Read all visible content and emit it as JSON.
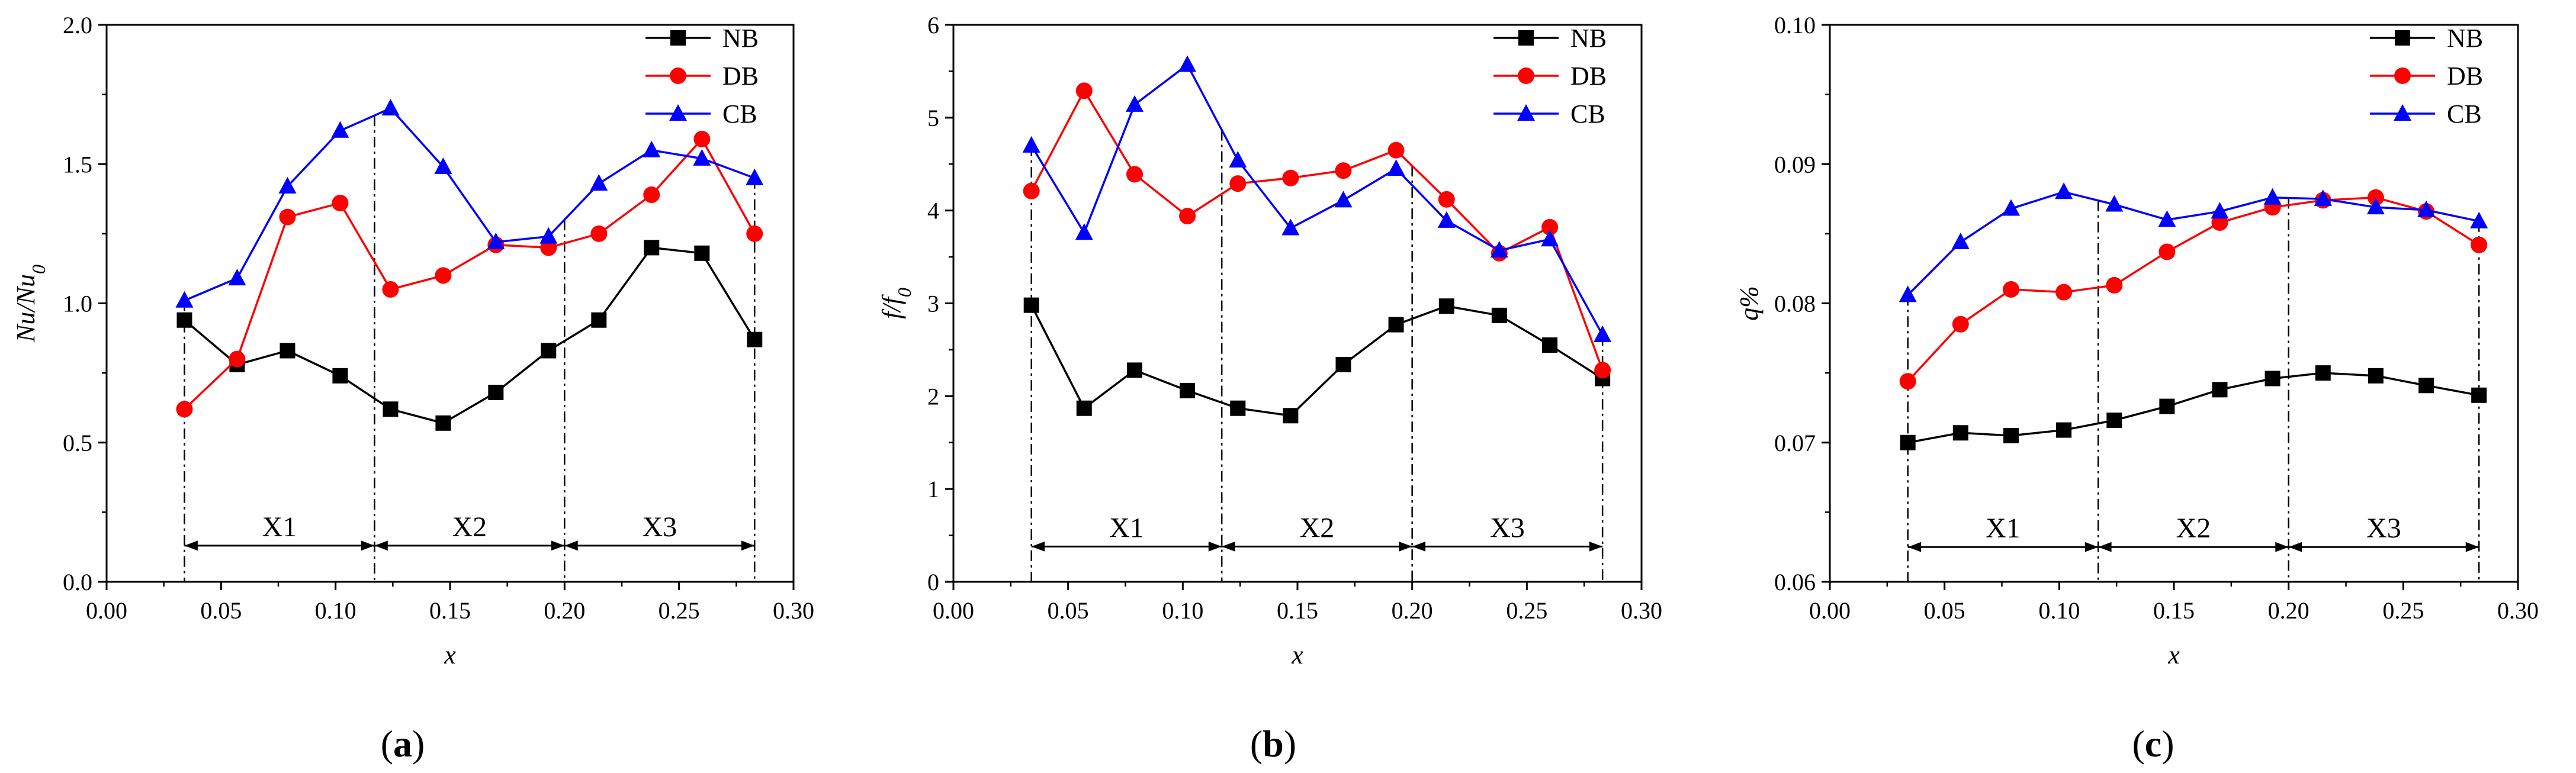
{
  "figure": {
    "colors": {
      "NB": "#000000",
      "DB": "#ff0000",
      "CB": "#0000ff",
      "axis": "#000000"
    },
    "marker_names": {
      "NB": "square-marker",
      "DB": "circle-marker",
      "CB": "triangle-marker"
    },
    "zone_boundaries": [
      0.034,
      0.117,
      0.2,
      0.283
    ]
  },
  "chart_data": [
    {
      "type": "line",
      "panel_label": "(a)",
      "panel_letter": "a",
      "title": "",
      "xlabel": "x",
      "ylabel": "Nu/Nu",
      "ylabel_sub": "0",
      "xlim": [
        0,
        0.3
      ],
      "ylim": [
        0,
        2.0
      ],
      "xticks": [
        0,
        0.05,
        0.1,
        0.15,
        0.2,
        0.25,
        0.3
      ],
      "xtick_labels": [
        "0.00",
        "0.05",
        "0.10",
        "0.15",
        "0.20",
        "0.25",
        "0.30"
      ],
      "yticks": [
        0,
        0.5,
        1.0,
        1.5,
        2.0
      ],
      "ytick_labels": [
        "0.0",
        "0.5",
        "1.0",
        "1.5",
        "2.0"
      ],
      "x": [
        0.034,
        0.057,
        0.079,
        0.102,
        0.124,
        0.147,
        0.17,
        0.193,
        0.215,
        0.238,
        0.26,
        0.283
      ],
      "series": [
        {
          "name": "NB",
          "values": [
            0.94,
            0.78,
            0.83,
            0.74,
            0.62,
            0.57,
            0.68,
            0.83,
            0.94,
            1.2,
            1.18,
            0.87
          ]
        },
        {
          "name": "DB",
          "values": [
            0.62,
            0.8,
            1.31,
            1.36,
            1.05,
            1.1,
            1.21,
            1.2,
            1.25,
            1.39,
            1.59,
            1.25
          ]
        },
        {
          "name": "CB",
          "values": [
            1.01,
            1.09,
            1.42,
            1.62,
            1.7,
            1.49,
            1.22,
            1.24,
            1.43,
            1.55,
            1.52,
            1.45
          ]
        }
      ],
      "legend": [
        "NB",
        "DB",
        "CB"
      ],
      "legend_position": "top-right",
      "zones": [
        "X1",
        "X2",
        "X3"
      ],
      "zone_arrow_y": 0.13
    },
    {
      "type": "line",
      "panel_label": "(b)",
      "panel_letter": "b",
      "title": "",
      "xlabel": "x",
      "ylabel": "f/f",
      "ylabel_sub": "0",
      "xlim": [
        0,
        0.3
      ],
      "ylim": [
        0,
        6
      ],
      "xticks": [
        0,
        0.05,
        0.1,
        0.15,
        0.2,
        0.25,
        0.3
      ],
      "xtick_labels": [
        "0.00",
        "0.05",
        "0.10",
        "0.15",
        "0.20",
        "0.25",
        "0.30"
      ],
      "yticks": [
        0,
        1,
        2,
        3,
        4,
        5,
        6
      ],
      "ytick_labels": [
        "0",
        "1",
        "2",
        "3",
        "4",
        "5",
        "6"
      ],
      "x": [
        0.034,
        0.057,
        0.079,
        0.102,
        0.124,
        0.147,
        0.17,
        0.193,
        0.215,
        0.238,
        0.26,
        0.283
      ],
      "series": [
        {
          "name": "NB",
          "values": [
            2.98,
            1.87,
            2.28,
            2.06,
            1.87,
            1.79,
            2.34,
            2.77,
            2.97,
            2.87,
            2.55,
            2.19
          ]
        },
        {
          "name": "DB",
          "values": [
            4.21,
            5.29,
            4.39,
            3.94,
            4.29,
            4.35,
            4.43,
            4.65,
            4.12,
            3.54,
            3.82,
            2.28
          ]
        },
        {
          "name": "CB",
          "values": [
            4.7,
            3.76,
            5.14,
            5.57,
            4.54,
            3.81,
            4.11,
            4.45,
            3.89,
            3.57,
            3.69,
            2.66
          ]
        }
      ],
      "legend": [
        "NB",
        "DB",
        "CB"
      ],
      "legend_position": "top-right",
      "zones": [
        "X1",
        "X2",
        "X3"
      ],
      "zone_arrow_y": 0.38
    },
    {
      "type": "line",
      "panel_label": "(c)",
      "panel_letter": "c",
      "title": "",
      "xlabel": "x",
      "ylabel": "q%",
      "ylabel_sub": "",
      "xlim": [
        0,
        0.3
      ],
      "ylim": [
        0.06,
        0.1
      ],
      "xticks": [
        0,
        0.05,
        0.1,
        0.15,
        0.2,
        0.25,
        0.3
      ],
      "xtick_labels": [
        "0.00",
        "0.05",
        "0.10",
        "0.15",
        "0.20",
        "0.25",
        "0.30"
      ],
      "yticks": [
        0.06,
        0.07,
        0.08,
        0.09,
        0.1
      ],
      "ytick_labels": [
        "0.06",
        "0.07",
        "0.08",
        "0.09",
        "0.10"
      ],
      "x": [
        0.034,
        0.057,
        0.079,
        0.102,
        0.124,
        0.147,
        0.17,
        0.193,
        0.215,
        0.238,
        0.26,
        0.283
      ],
      "series": [
        {
          "name": "NB",
          "values": [
            0.07,
            0.0707,
            0.0705,
            0.0709,
            0.0716,
            0.0726,
            0.0738,
            0.0746,
            0.075,
            0.0748,
            0.0741,
            0.0734
          ]
        },
        {
          "name": "DB",
          "values": [
            0.0744,
            0.0785,
            0.081,
            0.0808,
            0.0813,
            0.0837,
            0.0858,
            0.0869,
            0.0874,
            0.0876,
            0.0866,
            0.0842
          ]
        },
        {
          "name": "CB",
          "values": [
            0.0806,
            0.0844,
            0.0868,
            0.088,
            0.0871,
            0.086,
            0.0866,
            0.0876,
            0.0875,
            0.0869,
            0.0867,
            0.0859
          ]
        }
      ],
      "legend": [
        "NB",
        "DB",
        "CB"
      ],
      "legend_position": "top-right",
      "zones": [
        "X1",
        "X2",
        "X3"
      ],
      "zone_arrow_y": 0.0625
    }
  ]
}
